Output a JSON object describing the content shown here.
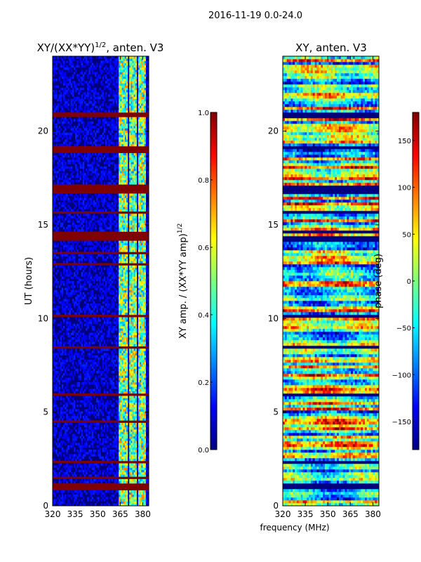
{
  "suptitle": "2016-11-19 0.0-24.0",
  "colors": {
    "jet": [
      "#00007f",
      "#0000ff",
      "#007fff",
      "#00ffff",
      "#7fff7f",
      "#ffff00",
      "#ff7f00",
      "#ff0000",
      "#7f0000"
    ]
  },
  "chart_data": [
    {
      "type": "heatmap",
      "title": "XY/(XX*YY)",
      "title_sup": "1/2",
      "title_suffix": ", anten. V3",
      "xlabel": "",
      "ylabel": "UT (hours)",
      "xlim": [
        320,
        384
      ],
      "ylim": [
        0,
        24
      ],
      "x_ticks": [
        320,
        335,
        350,
        365,
        380
      ],
      "y_ticks": [
        0,
        5,
        10,
        15,
        20
      ],
      "colorbar": {
        "label": "XY amp. / (XX*YY amp)",
        "label_sup": "1/2",
        "range": [
          0.0,
          1.0
        ],
        "ticks": [
          0.0,
          0.2,
          0.4,
          0.6,
          0.8,
          1.0
        ],
        "tick_labels": [
          "0.0",
          "0.2",
          "0.4",
          "0.6",
          "0.8",
          "1.0"
        ]
      },
      "saturated_bands_hours": [
        [
          0.9,
          1.15
        ],
        [
          1.5,
          1.6
        ],
        [
          2.3,
          2.45
        ],
        [
          4.4,
          4.6
        ],
        [
          5.9,
          6.0
        ],
        [
          8.4,
          8.55
        ],
        [
          10.1,
          10.2
        ],
        [
          12.85,
          12.95
        ],
        [
          13.4,
          13.55
        ],
        [
          14.15,
          14.65
        ],
        [
          15.6,
          15.7
        ],
        [
          16.65,
          17.1
        ],
        [
          18.9,
          19.2
        ],
        [
          20.75,
          21.05
        ]
      ],
      "bright_columns_mhz": [
        [
          364,
          370
        ],
        [
          371,
          376
        ],
        [
          377,
          382
        ]
      ]
    },
    {
      "type": "heatmap",
      "title": "XY, anten. V3",
      "xlabel": "frequency (MHz)",
      "ylabel": "",
      "xlim": [
        320,
        384
      ],
      "ylim": [
        0,
        24
      ],
      "x_ticks": [
        320,
        335,
        350,
        365,
        380
      ],
      "y_ticks": [
        0,
        5,
        10,
        15,
        20
      ],
      "colorbar": {
        "label": "phase (deg)",
        "range": [
          -180,
          180
        ],
        "ticks": [
          -150,
          -100,
          -50,
          0,
          50,
          100,
          150
        ],
        "tick_labels": [
          "−150",
          "−100",
          "−50",
          "0",
          "50",
          "100",
          "150"
        ]
      }
    }
  ]
}
